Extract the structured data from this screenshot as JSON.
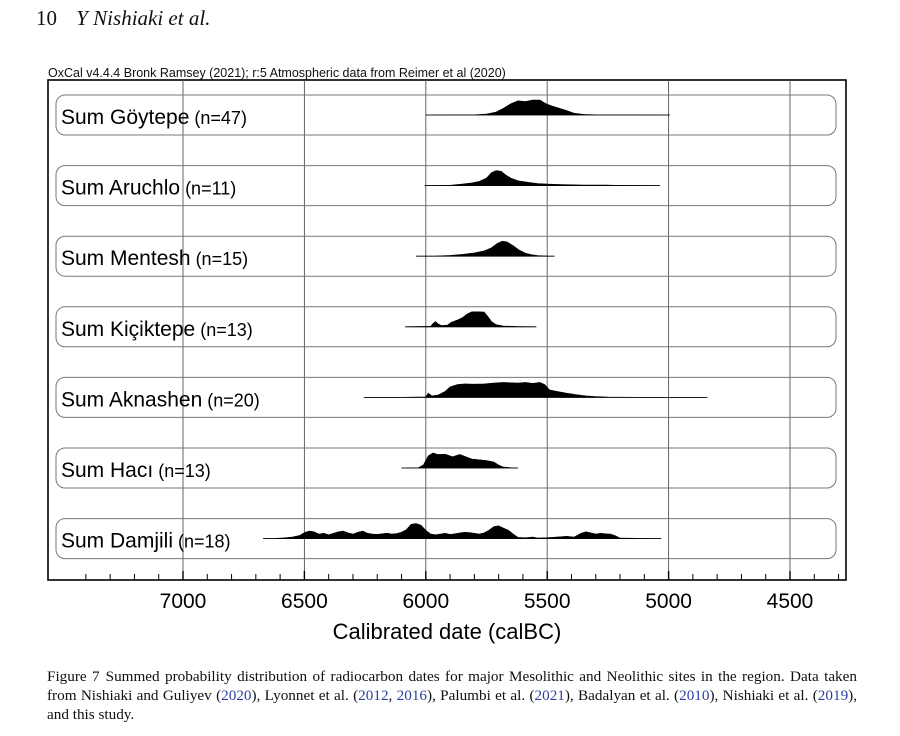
{
  "page": {
    "number": "10",
    "authors": "Y Nishiaki et al."
  },
  "figure": {
    "header": "OxCal v4.4.4 Bronk Ramsey (2021); r:5 Atmospheric data from Reimer et al (2020)",
    "caption": {
      "label": "Figure 7",
      "text_1": "Summed probability distribution of radiocarbon dates for major Mesolithic and Neolithic sites in the region. Data taken from Nishiaki and Guliyev (",
      "ref_1": "2020",
      "text_2": "), Lyonnet et al. (",
      "ref_2": "2012",
      "text_3": ", ",
      "ref_3": "2016",
      "text_4": "), Palumbi et al. (",
      "ref_4": "2021",
      "text_5": "), Badalyan et al. (",
      "ref_5": "2010",
      "text_6": "), Nishiaki et al. (",
      "ref_6": "2019",
      "text_7": "), and this study."
    }
  },
  "chart_data": {
    "type": "area",
    "xlabel": "Calibrated date (calBC)",
    "xlim": [
      7500,
      4270
    ],
    "x_reversed": true,
    "ticks": [
      7000,
      6500,
      6000,
      5500,
      5000,
      4500
    ],
    "tick_labels": [
      "7000",
      "6500",
      "6000",
      "5500",
      "5000",
      "4500"
    ],
    "minor_tick_step": 100,
    "grid": true,
    "colors": {
      "fill": "#000000",
      "axis": "#000000",
      "grid": "#555555"
    },
    "series": [
      {
        "name": "Sum Göytepe",
        "count": "(n=47)",
        "range": [
          6000,
          4995
        ],
        "points": [
          [
            6000,
            0
          ],
          [
            5800,
            0.01
          ],
          [
            5750,
            0.06
          ],
          [
            5710,
            0.2
          ],
          [
            5680,
            0.45
          ],
          [
            5650,
            0.75
          ],
          [
            5620,
            0.95
          ],
          [
            5590,
            0.9
          ],
          [
            5560,
            1
          ],
          [
            5530,
            1
          ],
          [
            5505,
            0.75
          ],
          [
            5480,
            0.6
          ],
          [
            5450,
            0.45
          ],
          [
            5420,
            0.3
          ],
          [
            5390,
            0.12
          ],
          [
            5350,
            0.04
          ],
          [
            5300,
            0.01
          ],
          [
            4995,
            0
          ]
        ]
      },
      {
        "name": "Sum Aruchlo",
        "count": "(n=11)",
        "range": [
          6005,
          5035
        ],
        "points": [
          [
            6005,
            0
          ],
          [
            5900,
            0.02
          ],
          [
            5850,
            0.1
          ],
          [
            5810,
            0.18
          ],
          [
            5780,
            0.28
          ],
          [
            5750,
            0.5
          ],
          [
            5730,
            0.85
          ],
          [
            5710,
            1
          ],
          [
            5690,
            0.95
          ],
          [
            5670,
            0.7
          ],
          [
            5650,
            0.5
          ],
          [
            5620,
            0.32
          ],
          [
            5580,
            0.22
          ],
          [
            5540,
            0.14
          ],
          [
            5500,
            0.1
          ],
          [
            5460,
            0.08
          ],
          [
            5420,
            0.06
          ],
          [
            5350,
            0.04
          ],
          [
            5260,
            0.04
          ],
          [
            5200,
            0.01
          ],
          [
            5035,
            0
          ]
        ]
      },
      {
        "name": "Sum Mentesh",
        "count": "(n=15)",
        "range": [
          6040,
          5470
        ],
        "points": [
          [
            6040,
            0
          ],
          [
            5960,
            0.01
          ],
          [
            5900,
            0.05
          ],
          [
            5850,
            0.12
          ],
          [
            5800,
            0.22
          ],
          [
            5760,
            0.35
          ],
          [
            5730,
            0.55
          ],
          [
            5705,
            0.85
          ],
          [
            5685,
            1
          ],
          [
            5665,
            0.95
          ],
          [
            5640,
            0.7
          ],
          [
            5615,
            0.4
          ],
          [
            5590,
            0.2
          ],
          [
            5565,
            0.1
          ],
          [
            5540,
            0.04
          ],
          [
            5500,
            0.01
          ],
          [
            5470,
            0
          ]
        ]
      },
      {
        "name": "Sum Kiçiktepe",
        "count": "(n=13)",
        "range": [
          6085,
          5545
        ],
        "points": [
          [
            6085,
            0
          ],
          [
            5980,
            0.03
          ],
          [
            5970,
            0.22
          ],
          [
            5960,
            0.35
          ],
          [
            5950,
            0.2
          ],
          [
            5935,
            0.08
          ],
          [
            5910,
            0.12
          ],
          [
            5895,
            0.3
          ],
          [
            5870,
            0.45
          ],
          [
            5850,
            0.6
          ],
          [
            5830,
            0.85
          ],
          [
            5810,
            1
          ],
          [
            5780,
            1
          ],
          [
            5760,
            0.98
          ],
          [
            5745,
            0.7
          ],
          [
            5730,
            0.35
          ],
          [
            5710,
            0.14
          ],
          [
            5680,
            0.05
          ],
          [
            5620,
            0.02
          ],
          [
            5545,
            0
          ]
        ]
      },
      {
        "name": "Sum Aknashen",
        "count": "(n=20)",
        "range": [
          6255,
          4840
        ],
        "points": [
          [
            6255,
            0
          ],
          [
            6100,
            0.01
          ],
          [
            6000,
            0.03
          ],
          [
            5990,
            0.28
          ],
          [
            5975,
            0.1
          ],
          [
            5950,
            0.15
          ],
          [
            5920,
            0.4
          ],
          [
            5900,
            0.7
          ],
          [
            5870,
            0.85
          ],
          [
            5840,
            0.9
          ],
          [
            5800,
            0.88
          ],
          [
            5760,
            0.9
          ],
          [
            5720,
            0.95
          ],
          [
            5680,
            1
          ],
          [
            5620,
            0.95
          ],
          [
            5590,
            1
          ],
          [
            5560,
            0.93
          ],
          [
            5530,
            1
          ],
          [
            5510,
            0.85
          ],
          [
            5490,
            0.5
          ],
          [
            5460,
            0.4
          ],
          [
            5420,
            0.28
          ],
          [
            5380,
            0.18
          ],
          [
            5340,
            0.1
          ],
          [
            5300,
            0.05
          ],
          [
            5250,
            0.02
          ],
          [
            5100,
            0.01
          ],
          [
            4840,
            0
          ]
        ]
      },
      {
        "name": "Sum Hacı",
        "count": "(n=13)",
        "range": [
          6100,
          5620
        ],
        "points": [
          [
            6100,
            0
          ],
          [
            6030,
            0.02
          ],
          [
            6010,
            0.2
          ],
          [
            5990,
            0.8
          ],
          [
            5970,
            1
          ],
          [
            5950,
            0.9
          ],
          [
            5920,
            0.92
          ],
          [
            5890,
            0.75
          ],
          [
            5860,
            0.9
          ],
          [
            5835,
            0.75
          ],
          [
            5810,
            0.6
          ],
          [
            5780,
            0.55
          ],
          [
            5750,
            0.5
          ],
          [
            5720,
            0.4
          ],
          [
            5700,
            0.2
          ],
          [
            5680,
            0.06
          ],
          [
            5650,
            0.02
          ],
          [
            5620,
            0
          ]
        ]
      },
      {
        "name": "Sum Damjili",
        "count": "(n=18)",
        "range": [
          6670,
          5030
        ],
        "points": [
          [
            6670,
            0
          ],
          [
            6620,
            0.01
          ],
          [
            6580,
            0.05
          ],
          [
            6550,
            0.1
          ],
          [
            6520,
            0.2
          ],
          [
            6500,
            0.4
          ],
          [
            6480,
            0.5
          ],
          [
            6460,
            0.45
          ],
          [
            6440,
            0.3
          ],
          [
            6420,
            0.35
          ],
          [
            6400,
            0.25
          ],
          [
            6380,
            0.35
          ],
          [
            6360,
            0.45
          ],
          [
            6340,
            0.5
          ],
          [
            6320,
            0.38
          ],
          [
            6300,
            0.3
          ],
          [
            6280,
            0.42
          ],
          [
            6260,
            0.5
          ],
          [
            6240,
            0.35
          ],
          [
            6220,
            0.3
          ],
          [
            6200,
            0.28
          ],
          [
            6180,
            0.32
          ],
          [
            6160,
            0.36
          ],
          [
            6140,
            0.3
          ],
          [
            6120,
            0.34
          ],
          [
            6100,
            0.42
          ],
          [
            6080,
            0.6
          ],
          [
            6060,
            0.95
          ],
          [
            6040,
            1
          ],
          [
            6020,
            0.9
          ],
          [
            6000,
            0.55
          ],
          [
            5980,
            0.3
          ],
          [
            5960,
            0.25
          ],
          [
            5940,
            0.3
          ],
          [
            5920,
            0.35
          ],
          [
            5900,
            0.28
          ],
          [
            5880,
            0.32
          ],
          [
            5860,
            0.38
          ],
          [
            5840,
            0.42
          ],
          [
            5820,
            0.4
          ],
          [
            5800,
            0.35
          ],
          [
            5780,
            0.3
          ],
          [
            5760,
            0.38
          ],
          [
            5740,
            0.55
          ],
          [
            5720,
            0.8
          ],
          [
            5700,
            0.85
          ],
          [
            5680,
            0.7
          ],
          [
            5660,
            0.55
          ],
          [
            5640,
            0.3
          ],
          [
            5620,
            0.08
          ],
          [
            5590,
            0.05
          ],
          [
            5560,
            0.1
          ],
          [
            5540,
            0.04
          ],
          [
            5500,
            0.06
          ],
          [
            5460,
            0.1
          ],
          [
            5420,
            0.15
          ],
          [
            5390,
            0.1
          ],
          [
            5360,
            0.35
          ],
          [
            5340,
            0.45
          ],
          [
            5320,
            0.38
          ],
          [
            5300,
            0.3
          ],
          [
            5280,
            0.35
          ],
          [
            5260,
            0.32
          ],
          [
            5240,
            0.3
          ],
          [
            5220,
            0.2
          ],
          [
            5200,
            0.03
          ],
          [
            5120,
            0.01
          ],
          [
            5030,
            0
          ]
        ]
      }
    ]
  }
}
